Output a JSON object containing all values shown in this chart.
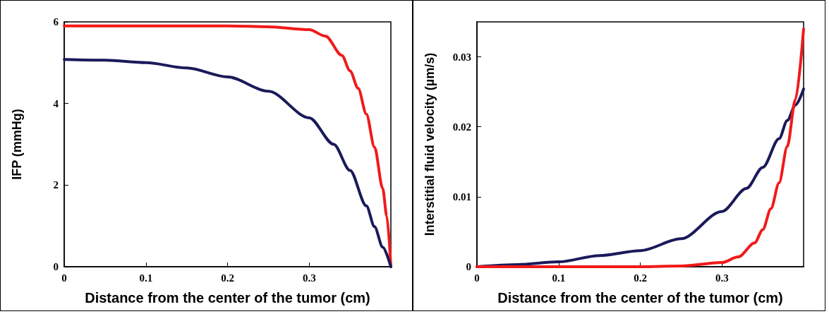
{
  "chart_data": [
    {
      "type": "line",
      "xlabel": "Distance from the center of the tumor (cm)",
      "ylabel": "IFP (mmHg)",
      "xlim": [
        0,
        0.4
      ],
      "xticks": [
        0,
        0.1,
        0.2,
        0.3
      ],
      "ylim": [
        0,
        6
      ],
      "yticks": [
        0,
        2,
        4,
        6
      ],
      "grid": false,
      "marker": "none",
      "line_style": "solid",
      "series": [
        {
          "color": "#f01a1a",
          "x": [
            0,
            0.1,
            0.2,
            0.25,
            0.3,
            0.32,
            0.34,
            0.35,
            0.36,
            0.37,
            0.38,
            0.39,
            0.395,
            0.4
          ],
          "values": [
            5.9,
            5.9,
            5.9,
            5.88,
            5.81,
            5.65,
            5.18,
            4.8,
            4.37,
            3.74,
            2.93,
            1.92,
            1.24,
            0
          ]
        },
        {
          "color": "#1a1a5a",
          "x": [
            0,
            0.05,
            0.1,
            0.15,
            0.2,
            0.25,
            0.3,
            0.33,
            0.35,
            0.37,
            0.38,
            0.39,
            0.4
          ],
          "values": [
            5.08,
            5.06,
            5.0,
            4.87,
            4.65,
            4.3,
            3.65,
            3.0,
            2.36,
            1.49,
            0.98,
            0.48,
            0
          ]
        }
      ]
    },
    {
      "type": "line",
      "xlabel": "Distance from the center of the tumor (cm)",
      "ylabel": "Interstitial fluid velocity (µm/s)",
      "xlim": [
        0,
        0.4
      ],
      "xticks": [
        0,
        0.1,
        0.2,
        0.3
      ],
      "ylim": [
        0,
        0.035
      ],
      "yticks": [
        0,
        0.01,
        0.02,
        0.03
      ],
      "grid": false,
      "marker": "none",
      "line_style": "solid",
      "series": [
        {
          "color": "#1a1a5a",
          "x": [
            0,
            0.05,
            0.1,
            0.15,
            0.2,
            0.25,
            0.3,
            0.33,
            0.35,
            0.37,
            0.38,
            0.39,
            0.4
          ],
          "values": [
            0,
            0.0003,
            0.0007,
            0.0016,
            0.0023,
            0.004,
            0.0079,
            0.0112,
            0.0142,
            0.0183,
            0.0209,
            0.0231,
            0.0254
          ]
        },
        {
          "color": "#f01a1a",
          "x": [
            0,
            0.1,
            0.2,
            0.25,
            0.3,
            0.32,
            0.34,
            0.35,
            0.36,
            0.37,
            0.38,
            0.39,
            0.4
          ],
          "values": [
            0,
            0,
            0,
            0.0001,
            0.0006,
            0.0014,
            0.0034,
            0.0053,
            0.0083,
            0.012,
            0.0172,
            0.0239,
            0.034
          ]
        }
      ]
    }
  ]
}
